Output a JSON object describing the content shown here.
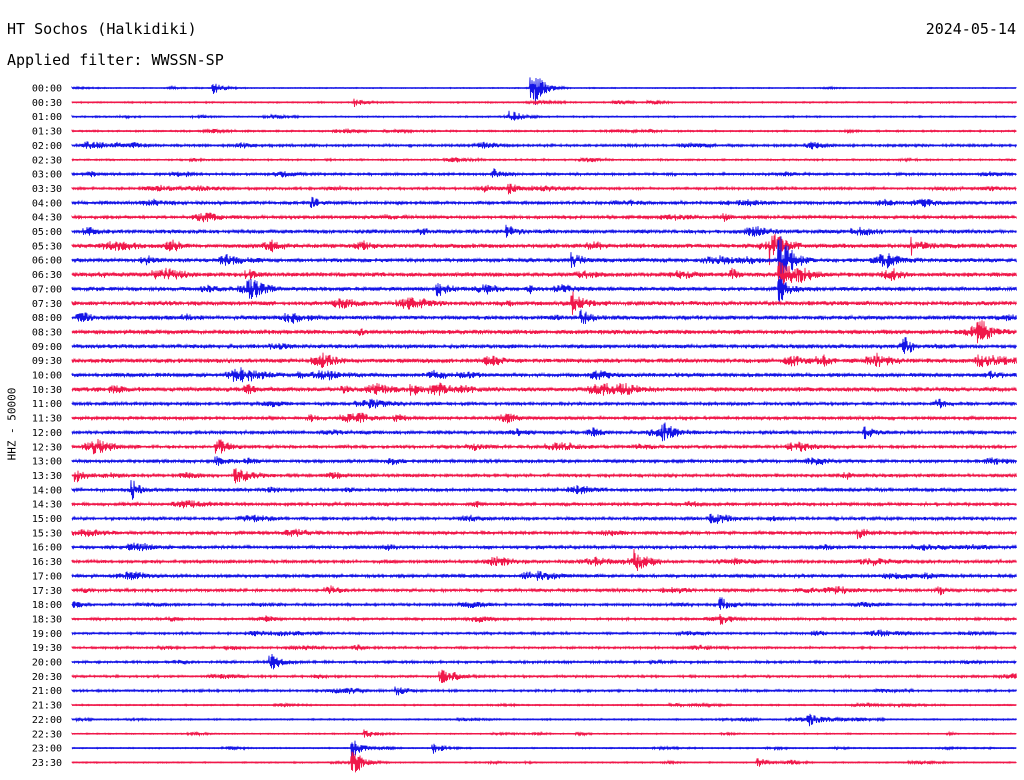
{
  "header": {
    "station": "HT Sochos (Halkidiki)",
    "date": "2024-05-14",
    "filter_prefix": "Applied filter:",
    "filter_name": "WWSSN-SP"
  },
  "y_axis_label": "HHZ - 50000",
  "colors": {
    "odd_trace": "#1515e6",
    "even_trace": "#f0184a"
  },
  "chart_data": {
    "type": "line",
    "title": "HT Sochos (Halkidiki)",
    "subtitle": "Applied filter: WWSSN-SP",
    "ylabel": "HHZ - 50000",
    "grid": false,
    "rows": [
      "00:00",
      "00:30",
      "01:00",
      "01:30",
      "02:00",
      "02:30",
      "03:00",
      "03:30",
      "04:00",
      "04:30",
      "05:00",
      "05:30",
      "06:00",
      "06:30",
      "07:00",
      "07:30",
      "08:00",
      "08:30",
      "09:00",
      "09:30",
      "10:00",
      "10:30",
      "11:00",
      "11:30",
      "12:00",
      "12:30",
      "13:00",
      "13:30",
      "14:00",
      "14:30",
      "15:00",
      "15:30",
      "16:00",
      "16:30",
      "17:00",
      "17:30",
      "18:00",
      "18:30",
      "19:00",
      "19:30",
      "20:00",
      "20:30",
      "21:00",
      "21:30",
      "22:00",
      "22:30",
      "23:00",
      "23:30"
    ],
    "noise_level": [
      0.4,
      0.6,
      0.6,
      0.7,
      1.0,
      0.7,
      1.0,
      1.0,
      1.3,
      1.3,
      1.6,
      1.8,
      1.6,
      1.8,
      1.6,
      1.8,
      1.6,
      1.8,
      1.6,
      1.8,
      1.6,
      1.8,
      1.3,
      1.3,
      1.3,
      1.3,
      1.3,
      1.3,
      1.3,
      1.3,
      1.3,
      1.3,
      1.3,
      1.3,
      1.3,
      1.3,
      1.0,
      1.0,
      0.9,
      0.9,
      1.0,
      0.9,
      0.9,
      0.6,
      0.6,
      0.5,
      0.5,
      0.5
    ],
    "events": [
      {
        "row": "00:00",
        "minute": 4.5,
        "amplitude": 6
      },
      {
        "row": "00:00",
        "minute": 14.6,
        "amplitude": 24
      },
      {
        "row": "00:30",
        "minute": 9.0,
        "amplitude": 4
      },
      {
        "row": "01:00",
        "minute": 13.9,
        "amplitude": 5
      },
      {
        "row": "03:00",
        "minute": 13.4,
        "amplitude": 5
      },
      {
        "row": "03:30",
        "minute": 13.9,
        "amplitude": 5
      },
      {
        "row": "04:00",
        "minute": 7.6,
        "amplitude": 5
      },
      {
        "row": "05:00",
        "minute": 13.8,
        "amplitude": 6
      },
      {
        "row": "05:30",
        "minute": 22.2,
        "amplitude": 18
      },
      {
        "row": "05:30",
        "minute": 26.7,
        "amplitude": 9
      },
      {
        "row": "06:00",
        "minute": 22.5,
        "amplitude": 30
      },
      {
        "row": "06:00",
        "minute": 15.9,
        "amplitude": 7
      },
      {
        "row": "06:30",
        "minute": 22.5,
        "amplitude": 14
      },
      {
        "row": "07:00",
        "minute": 11.6,
        "amplitude": 8
      },
      {
        "row": "07:00",
        "minute": 22.5,
        "amplitude": 12
      },
      {
        "row": "07:30",
        "minute": 15.9,
        "amplitude": 12
      },
      {
        "row": "08:00",
        "minute": 16.2,
        "amplitude": 7
      },
      {
        "row": "09:30",
        "minute": 28.7,
        "amplitude": 6
      },
      {
        "row": "10:30",
        "minute": 10.8,
        "amplitude": 5
      },
      {
        "row": "12:00",
        "minute": 18.8,
        "amplitude": 6
      },
      {
        "row": "12:00",
        "minute": 25.2,
        "amplitude": 6
      },
      {
        "row": "12:30",
        "minute": 4.6,
        "amplitude": 6
      },
      {
        "row": "13:00",
        "minute": 4.6,
        "amplitude": 5
      },
      {
        "row": "13:30",
        "minute": 5.2,
        "amplitude": 8
      },
      {
        "row": "13:30",
        "minute": 0.1,
        "amplitude": 7
      },
      {
        "row": "14:00",
        "minute": 1.9,
        "amplitude": 6
      },
      {
        "row": "15:30",
        "minute": 25.0,
        "amplitude": 6
      },
      {
        "row": "16:30",
        "minute": 17.9,
        "amplitude": 9
      },
      {
        "row": "18:00",
        "minute": 20.6,
        "amplitude": 8
      },
      {
        "row": "18:30",
        "minute": 20.6,
        "amplitude": 6
      },
      {
        "row": "20:00",
        "minute": 6.3,
        "amplitude": 9
      },
      {
        "row": "20:30",
        "minute": 11.7,
        "amplitude": 6
      },
      {
        "row": "21:00",
        "minute": 10.3,
        "amplitude": 5
      },
      {
        "row": "22:00",
        "minute": 23.4,
        "amplitude": 6
      },
      {
        "row": "22:30",
        "minute": 9.3,
        "amplitude": 5
      },
      {
        "row": "23:00",
        "minute": 11.5,
        "amplitude": 6
      },
      {
        "row": "23:00",
        "minute": 8.9,
        "amplitude": 10
      },
      {
        "row": "23:30",
        "minute": 8.9,
        "amplitude": 16
      },
      {
        "row": "23:30",
        "minute": 21.8,
        "amplitude": 5
      }
    ]
  }
}
